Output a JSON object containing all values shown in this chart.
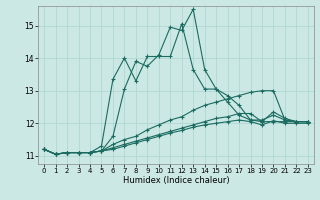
{
  "xlabel": "Humidex (Indice chaleur)",
  "bg_color": "#cce8e4",
  "grid_color": "#aad4d0",
  "line_color": "#1a6b60",
  "xlim": [
    -0.5,
    23.5
  ],
  "ylim": [
    10.75,
    15.6
  ],
  "yticks": [
    11,
    12,
    13,
    14,
    15
  ],
  "xticks": [
    0,
    1,
    2,
    3,
    4,
    5,
    6,
    7,
    8,
    9,
    10,
    11,
    12,
    13,
    14,
    15,
    16,
    17,
    18,
    19,
    20,
    21,
    22,
    23
  ],
  "series": [
    [
      11.2,
      11.05,
      11.1,
      11.1,
      11.1,
      11.15,
      11.6,
      13.05,
      13.9,
      13.75,
      14.1,
      14.95,
      14.85,
      15.5,
      13.65,
      13.05,
      12.65,
      12.25,
      12.1,
      12.05,
      12.35,
      12.15,
      12.05,
      12.05
    ],
    [
      11.2,
      11.05,
      11.1,
      11.1,
      11.1,
      11.3,
      13.35,
      14.0,
      13.3,
      14.05,
      14.05,
      14.05,
      15.05,
      13.65,
      13.05,
      13.05,
      12.85,
      12.55,
      12.1,
      12.1,
      12.25,
      12.1,
      12.05,
      12.05
    ],
    [
      11.2,
      11.05,
      11.1,
      11.1,
      11.1,
      11.15,
      11.35,
      11.5,
      11.6,
      11.8,
      11.95,
      12.1,
      12.2,
      12.4,
      12.55,
      12.65,
      12.75,
      12.85,
      12.95,
      13.0,
      13.0,
      12.1,
      12.05,
      12.05
    ],
    [
      11.2,
      11.05,
      11.1,
      11.1,
      11.1,
      11.15,
      11.25,
      11.35,
      11.45,
      11.55,
      11.65,
      11.75,
      11.85,
      11.95,
      12.05,
      12.15,
      12.2,
      12.3,
      12.3,
      12.05,
      12.05,
      12.05,
      12.05,
      12.05
    ],
    [
      11.2,
      11.05,
      11.1,
      11.1,
      11.1,
      11.15,
      11.2,
      11.3,
      11.4,
      11.5,
      11.6,
      11.7,
      11.78,
      11.88,
      11.95,
      12.0,
      12.05,
      12.1,
      12.05,
      11.95,
      12.08,
      12.0,
      12.0,
      12.0
    ]
  ]
}
